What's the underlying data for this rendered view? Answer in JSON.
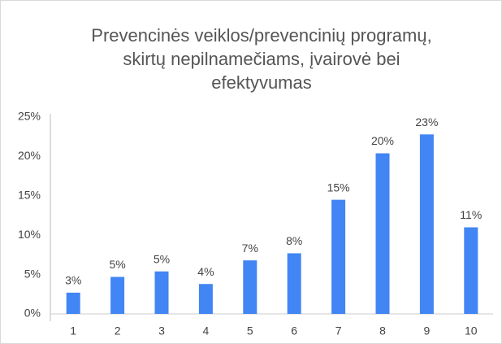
{
  "chart_data": {
    "type": "bar",
    "title": [
      "Prevencinės veiklos/prevencinių programų,",
      "skirtų nepilnamečiams, įvairovė bei",
      "efektyvumas"
    ],
    "categories": [
      "1",
      "2",
      "3",
      "4",
      "5",
      "6",
      "7",
      "8",
      "9",
      "10"
    ],
    "values": [
      2.7,
      4.7,
      5.4,
      3.8,
      6.8,
      7.7,
      14.5,
      20.4,
      22.8,
      11.0
    ],
    "value_labels": [
      "3%",
      "5%",
      "5%",
      "4%",
      "7%",
      "8%",
      "15%",
      "20%",
      "23%",
      "11%"
    ],
    "color": "#4285f4",
    "ylim": [
      0,
      25
    ],
    "yticks": [
      {
        "value": 0,
        "label": "0%"
      },
      {
        "value": 5,
        "label": "5%"
      },
      {
        "value": 10,
        "label": "10%"
      },
      {
        "value": 15,
        "label": "15%"
      },
      {
        "value": 20,
        "label": "20%"
      },
      {
        "value": 25,
        "label": "25%"
      }
    ],
    "grid": false
  }
}
